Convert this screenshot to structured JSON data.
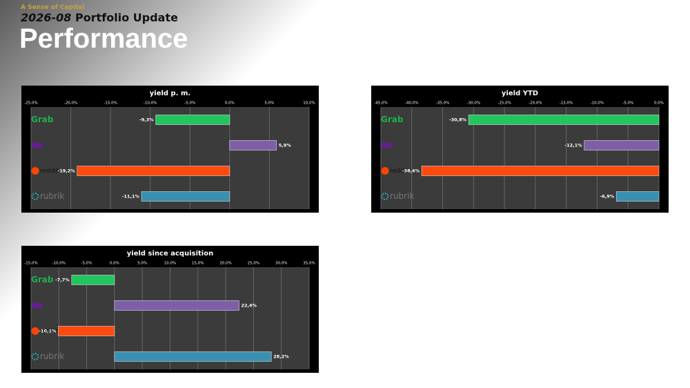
{
  "header": {
    "brand": "A Sense of Capital",
    "date": "2026-08",
    "subtitle": "Portfolio Update",
    "title": "Performance"
  },
  "chart_data": [
    {
      "type": "barh",
      "title": "yield p. m.",
      "categories": [
        "Grab",
        "nu",
        "reddit",
        "rubrik"
      ],
      "values": [
        -9.3,
        5.9,
        -19.2,
        -11.1
      ],
      "value_labels": [
        "-9,3%",
        "5,9%",
        "-19,2%",
        "-11,1%"
      ],
      "colors": [
        "#22c55e",
        "#7d5fa8",
        "#ff4a0f",
        "#3a90b0"
      ],
      "xlim": [
        -25,
        10
      ],
      "xticks": [
        {
          "value": -25,
          "label": "-25,0%"
        },
        {
          "value": -20,
          "label": "-20,0%"
        },
        {
          "value": -15,
          "label": "-15,0%"
        },
        {
          "value": -10,
          "label": "-10,0%"
        },
        {
          "value": -5,
          "label": "-5,0%"
        },
        {
          "value": 0,
          "label": "0,0%"
        },
        {
          "value": 5,
          "label": "5,0%"
        },
        {
          "value": 10,
          "label": "10,0%"
        }
      ],
      "grid": true
    },
    {
      "type": "barh",
      "title": "yield YTD",
      "categories": [
        "Grab",
        "nu",
        "reddit",
        "rubrik"
      ],
      "values": [
        -30.8,
        -12.1,
        -38.4,
        -6.9
      ],
      "value_labels": [
        "-30,8%",
        "-12,1%",
        "-38,4%",
        "-6,9%"
      ],
      "colors": [
        "#22c55e",
        "#7d5fa8",
        "#ff4a0f",
        "#3a90b0"
      ],
      "xlim": [
        -45,
        0
      ],
      "xticks": [
        {
          "value": -45,
          "label": "-45,0%"
        },
        {
          "value": -40,
          "label": "-40,0%"
        },
        {
          "value": -35,
          "label": "-35,0%"
        },
        {
          "value": -30,
          "label": "-30,0%"
        },
        {
          "value": -25,
          "label": "-25,0%"
        },
        {
          "value": -20,
          "label": "-20,0%"
        },
        {
          "value": -15,
          "label": "-15,0%"
        },
        {
          "value": -10,
          "label": "-10,0%"
        },
        {
          "value": -5,
          "label": "-5,0%"
        },
        {
          "value": 0,
          "label": "0,0%"
        }
      ],
      "grid": true
    },
    {
      "type": "barh",
      "title": "yield since acquisition",
      "categories": [
        "Grab",
        "nu",
        "reddit",
        "rubrik"
      ],
      "values": [
        -7.7,
        22.4,
        -10.1,
        28.2
      ],
      "value_labels": [
        "-7,7%",
        "22,4%",
        "-10,1%",
        "28,2%"
      ],
      "colors": [
        "#22c55e",
        "#7d5fa8",
        "#ff4a0f",
        "#3a90b0"
      ],
      "xlim": [
        -15,
        35
      ],
      "xticks": [
        {
          "value": -15,
          "label": "-15,0%"
        },
        {
          "value": -10,
          "label": "-10,0%"
        },
        {
          "value": -5,
          "label": "-5,0%"
        },
        {
          "value": 0,
          "label": "0,0%"
        },
        {
          "value": 5,
          "label": "5,0%"
        },
        {
          "value": 10,
          "label": "10,0%"
        },
        {
          "value": 15,
          "label": "15,0%"
        },
        {
          "value": 20,
          "label": "20,0%"
        },
        {
          "value": 25,
          "label": "25,0%"
        },
        {
          "value": 30,
          "label": "30,0%"
        },
        {
          "value": 35,
          "label": "35,0%"
        }
      ],
      "grid": true
    }
  ]
}
